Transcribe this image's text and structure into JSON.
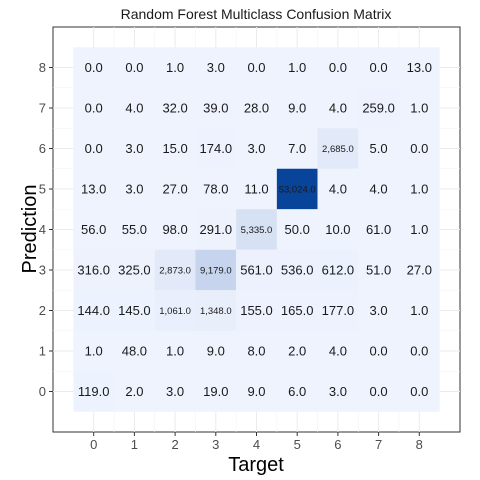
{
  "chart_data": {
    "type": "heatmap",
    "title": "Random Forest Multiclass Confusion Matrix",
    "xlabel": "Target",
    "ylabel": "Prediction",
    "x_categories": [
      "0",
      "1",
      "2",
      "3",
      "4",
      "5",
      "6",
      "7",
      "8"
    ],
    "y_categories": [
      "0",
      "1",
      "2",
      "3",
      "4",
      "5",
      "6",
      "7",
      "8"
    ],
    "rows": [
      {
        "prediction": "8",
        "values": [
          0,
          0,
          1,
          3,
          0,
          1,
          0,
          0,
          13
        ],
        "labels": [
          "0.0",
          "0.0",
          "1.0",
          "3.0",
          "0.0",
          "1.0",
          "0.0",
          "0.0",
          "13.0"
        ]
      },
      {
        "prediction": "7",
        "values": [
          0,
          4,
          32,
          39,
          28,
          9,
          4,
          259,
          1
        ],
        "labels": [
          "0.0",
          "4.0",
          "32.0",
          "39.0",
          "28.0",
          "9.0",
          "4.0",
          "259.0",
          "1.0"
        ]
      },
      {
        "prediction": "6",
        "values": [
          0,
          3,
          15,
          174,
          3,
          7,
          2685,
          5,
          0
        ],
        "labels": [
          "0.0",
          "3.0",
          "15.0",
          "174.0",
          "3.0",
          "7.0",
          "2,685.0",
          "5.0",
          "0.0"
        ]
      },
      {
        "prediction": "5",
        "values": [
          13,
          3,
          27,
          78,
          11,
          53024,
          4,
          4,
          1
        ],
        "labels": [
          "13.0",
          "3.0",
          "27.0",
          "78.0",
          "11.0",
          "53,024.0",
          "4.0",
          "4.0",
          "1.0"
        ]
      },
      {
        "prediction": "4",
        "values": [
          56,
          55,
          98,
          291,
          5335,
          50,
          10,
          61,
          1
        ],
        "labels": [
          "56.0",
          "55.0",
          "98.0",
          "291.0",
          "5,335.0",
          "50.0",
          "10.0",
          "61.0",
          "1.0"
        ]
      },
      {
        "prediction": "3",
        "values": [
          316,
          325,
          2873,
          9179,
          561,
          536,
          612,
          51,
          27
        ],
        "labels": [
          "316.0",
          "325.0",
          "2,873.0",
          "9,179.0",
          "561.0",
          "536.0",
          "612.0",
          "51.0",
          "27.0"
        ]
      },
      {
        "prediction": "2",
        "values": [
          144,
          145,
          1061,
          1348,
          155,
          165,
          177,
          3,
          1
        ],
        "labels": [
          "144.0",
          "145.0",
          "1,061.0",
          "1,348.0",
          "155.0",
          "165.0",
          "177.0",
          "3.0",
          "1.0"
        ]
      },
      {
        "prediction": "1",
        "values": [
          1,
          48,
          1,
          9,
          8,
          2,
          4,
          0,
          0
        ],
        "labels": [
          "1.0",
          "48.0",
          "1.0",
          "9.0",
          "8.0",
          "2.0",
          "4.0",
          "0.0",
          "0.0"
        ]
      },
      {
        "prediction": "0",
        "values": [
          119,
          2,
          3,
          19,
          9,
          6,
          3,
          0,
          0
        ],
        "labels": [
          "119.0",
          "2.0",
          "3.0",
          "19.0",
          "9.0",
          "6.0",
          "3.0",
          "0.0",
          "0.0"
        ]
      }
    ],
    "color_low": "#eef3fe",
    "color_high": "#08449a",
    "grid": true
  }
}
